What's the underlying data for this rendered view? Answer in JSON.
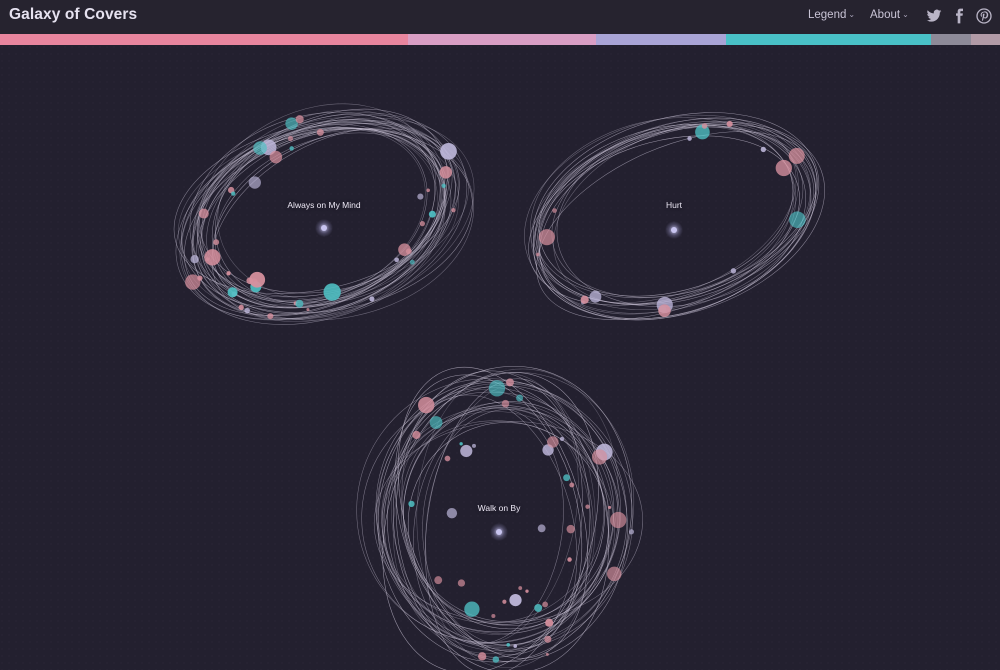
{
  "header": {
    "title": "Galaxy of Covers",
    "nav": [
      {
        "label": "Legend"
      },
      {
        "label": "About"
      }
    ],
    "social_icons": [
      "twitter-icon",
      "facebook-icon",
      "pinterest-icon"
    ]
  },
  "colors": {
    "background": "#23202f",
    "orbit": "#c3bccf",
    "pink": "#d7909e",
    "teal": "#4fc0c4",
    "lavender": "#bfb8dc",
    "center": "#c8c4f0"
  },
  "colorbar": [
    {
      "color": "#e8859e",
      "share": 0.408
    },
    {
      "color": "#d99ec4",
      "share": 0.188
    },
    {
      "color": "#a9a4d6",
      "share": 0.13
    },
    {
      "color": "#49c1c7",
      "share": 0.205
    },
    {
      "color": "#8d8a98",
      "share": 0.04
    },
    {
      "color": "#b19aa6",
      "share": 0.029
    }
  ],
  "galaxies": [
    {
      "name": "Always on My Mind"
    },
    {
      "name": "Hurt"
    },
    {
      "name": "Walk on By"
    }
  ]
}
